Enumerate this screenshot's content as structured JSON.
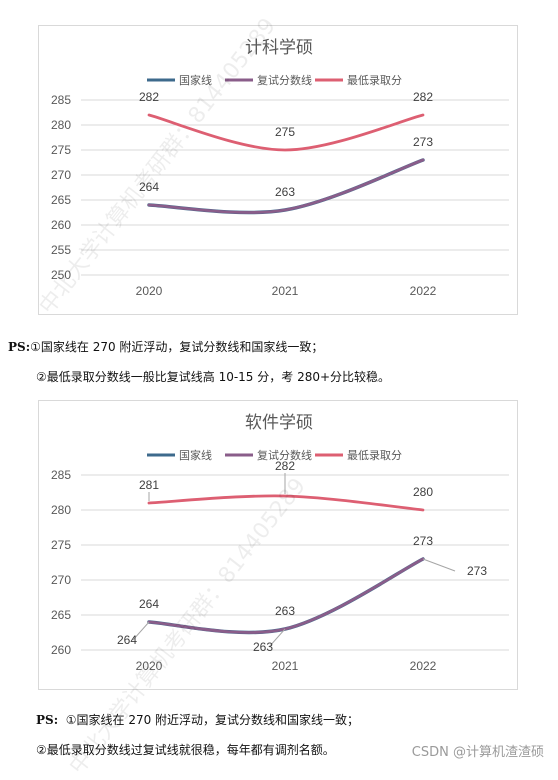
{
  "charts": [
    {
      "title": "计科学硕",
      "legend": [
        "国家线",
        "复试分数线",
        "最低录取分"
      ],
      "colors": {
        "national": "#3d6a8c",
        "retest": "#8a5d8a",
        "min": "#dd5f72"
      },
      "categories": [
        "2020",
        "2021",
        "2022"
      ],
      "yticks": [
        "285",
        "280",
        "275",
        "270",
        "265",
        "260",
        "255",
        "250"
      ],
      "series": {
        "min": [
          282,
          275,
          282
        ],
        "retest": [
          264,
          263,
          273
        ],
        "national": [
          264,
          263,
          273
        ]
      },
      "labels": {
        "min": [
          "282",
          "275",
          "282"
        ],
        "retest": [
          "264",
          "263",
          "273"
        ]
      }
    },
    {
      "title": "软件学硕",
      "legend": [
        "国家线",
        "复试分数线",
        "最低录取分"
      ],
      "colors": {
        "national": "#3d6a8c",
        "retest": "#8a5d8a",
        "min": "#dd5f72"
      },
      "categories": [
        "2020",
        "2021",
        "2022"
      ],
      "yticks": [
        "285",
        "280",
        "275",
        "270",
        "265",
        "260"
      ],
      "series": {
        "min": [
          281,
          282,
          280
        ],
        "retest": [
          264,
          263,
          273
        ],
        "national": [
          264,
          263,
          273
        ]
      },
      "labels": {
        "min": [
          "281",
          "282",
          "280"
        ],
        "retest": [
          "264",
          "263",
          "273"
        ],
        "national": [
          "264",
          "263",
          "273"
        ]
      }
    }
  ],
  "chart_data": [
    {
      "type": "line",
      "title": "计科学硕",
      "x": [
        "2020",
        "2021",
        "2022"
      ],
      "series": [
        {
          "name": "国家线",
          "values": [
            264,
            263,
            273
          ]
        },
        {
          "name": "复试分数线",
          "values": [
            264,
            263,
            273
          ]
        },
        {
          "name": "最低录取分",
          "values": [
            282,
            275,
            282
          ]
        }
      ],
      "ylim": [
        250,
        285
      ],
      "grid": true,
      "legend": "top"
    },
    {
      "type": "line",
      "title": "软件学硕",
      "x": [
        "2020",
        "2021",
        "2022"
      ],
      "series": [
        {
          "name": "国家线",
          "values": [
            264,
            263,
            273
          ]
        },
        {
          "name": "复试分数线",
          "values": [
            264,
            263,
            273
          ]
        },
        {
          "name": "最低录取分",
          "values": [
            281,
            282,
            280
          ]
        }
      ],
      "ylim": [
        260,
        285
      ],
      "grid": true,
      "legend": "top"
    }
  ],
  "notes": {
    "ps1_prefix": "PS:",
    "ps1_line1": "①国家线在 270 附近浮动，复试分数线和国家线一致；",
    "ps1_line2": "②最低录取分数线一般比复试线高 10-15 分，考 280+分比较稳。",
    "ps2_prefix": "PS:",
    "ps2_line1": "①国家线在 270 附近浮动，复试分数线和国家线一致；",
    "ps2_line2": "②最低录取分数线过复试线就很稳，每年都有调剂名额。"
  },
  "watermark": {
    "text1": "中北大学计算机考研群：814405289",
    "text2": "中北大学计算机考研群：814405289",
    "csdn": "CSDN @计算机渣渣硕"
  }
}
